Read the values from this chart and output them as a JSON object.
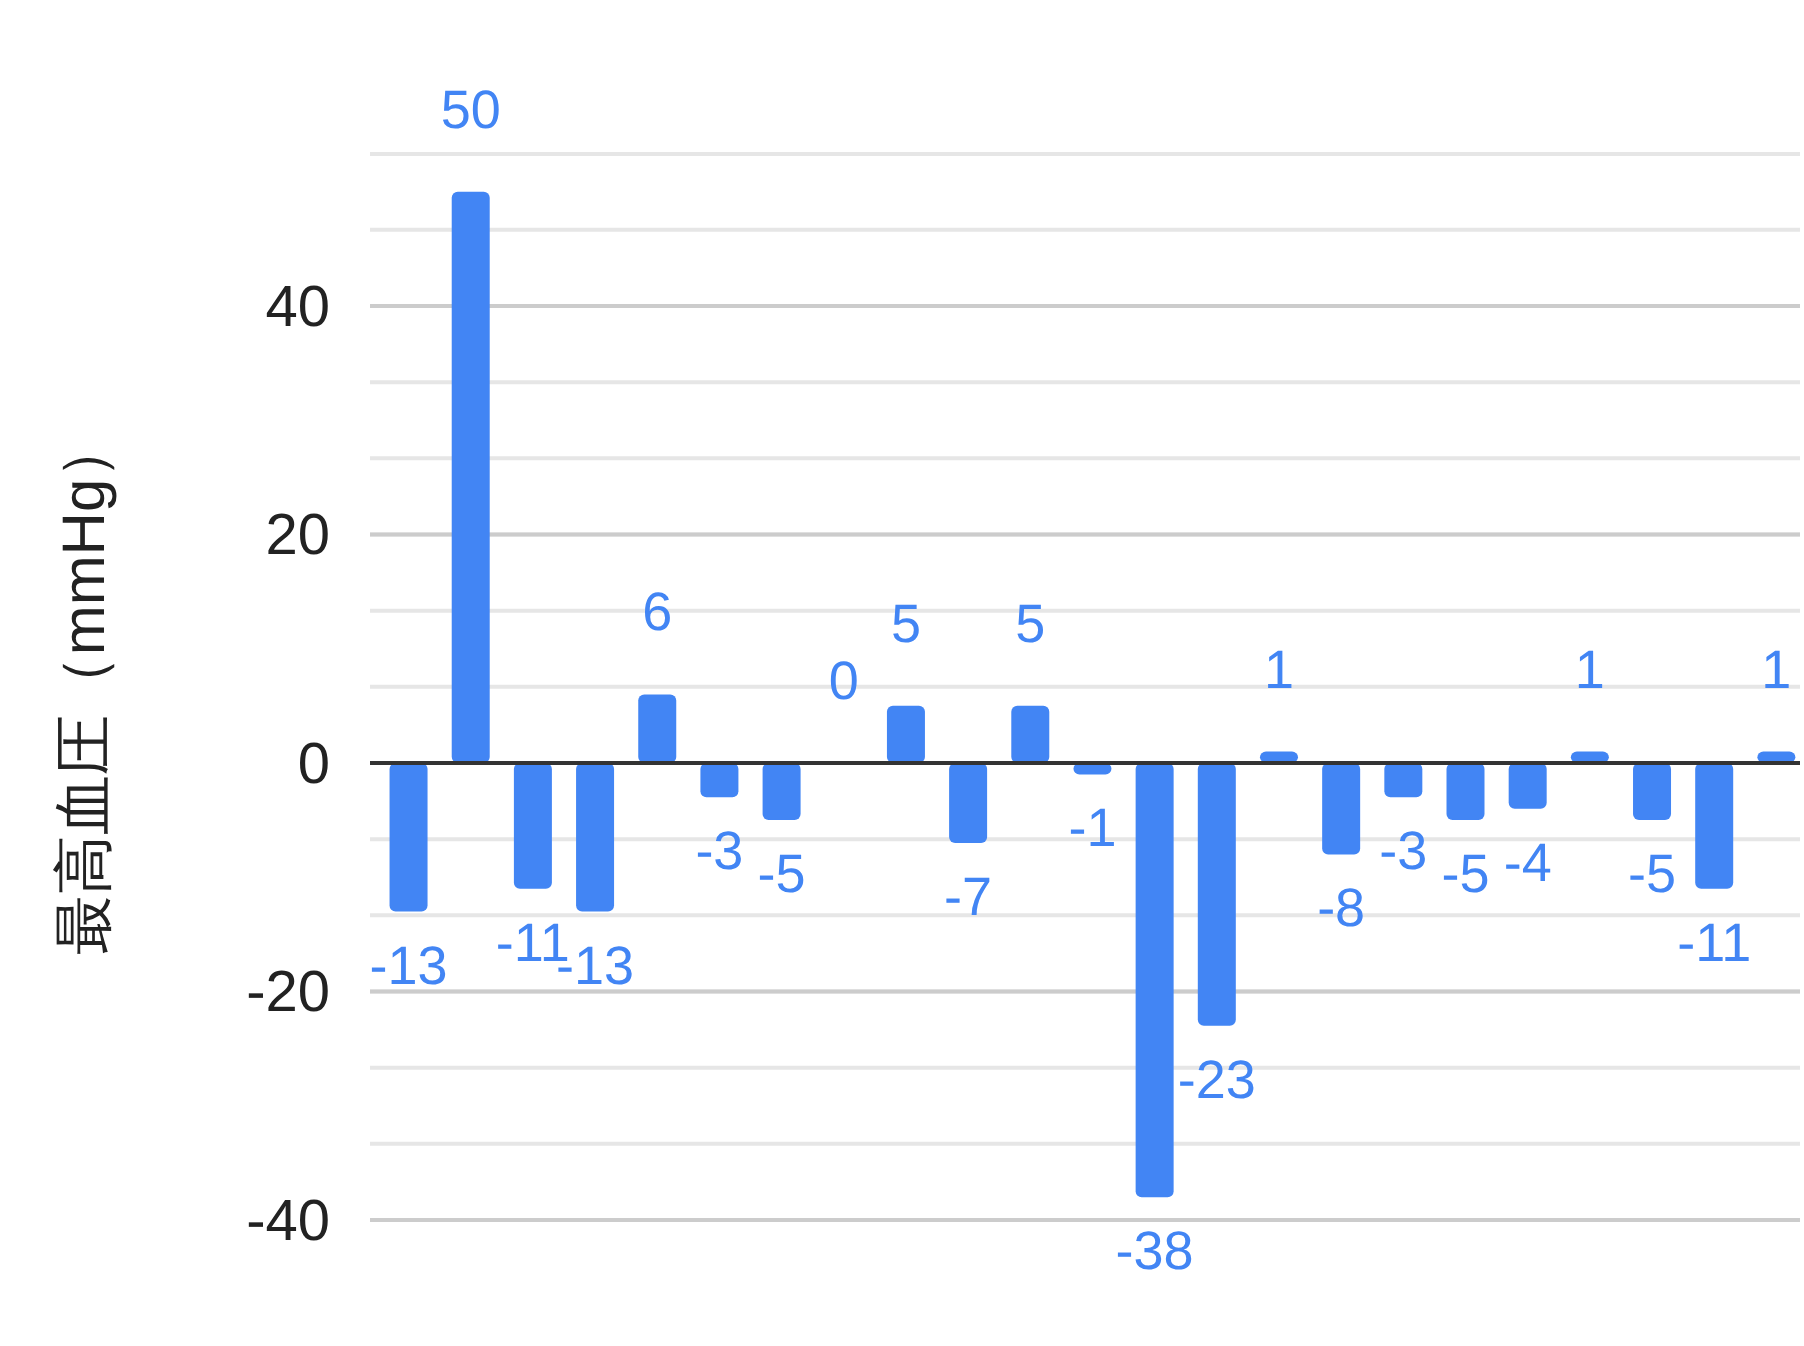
{
  "chart_data": {
    "type": "bar",
    "ylabel": "最高血圧（mmHg）",
    "categories": [
      null,
      null,
      null,
      null,
      null,
      null,
      null,
      null,
      null,
      null,
      null,
      null,
      null,
      null,
      null,
      null,
      null,
      null,
      null,
      null,
      null,
      null,
      null
    ],
    "values": [
      -13,
      50,
      -11,
      -13,
      6,
      -3,
      -5,
      0,
      5,
      -7,
      5,
      -1,
      -38,
      -23,
      1,
      -8,
      -3,
      -5,
      -4,
      1,
      -5,
      -11,
      1
    ],
    "color": "#4285f4",
    "data_labels": true,
    "ylim": [
      -40,
      53.3
    ],
    "yticks": [
      -40,
      -20,
      0,
      20,
      40
    ],
    "grid": true
  }
}
